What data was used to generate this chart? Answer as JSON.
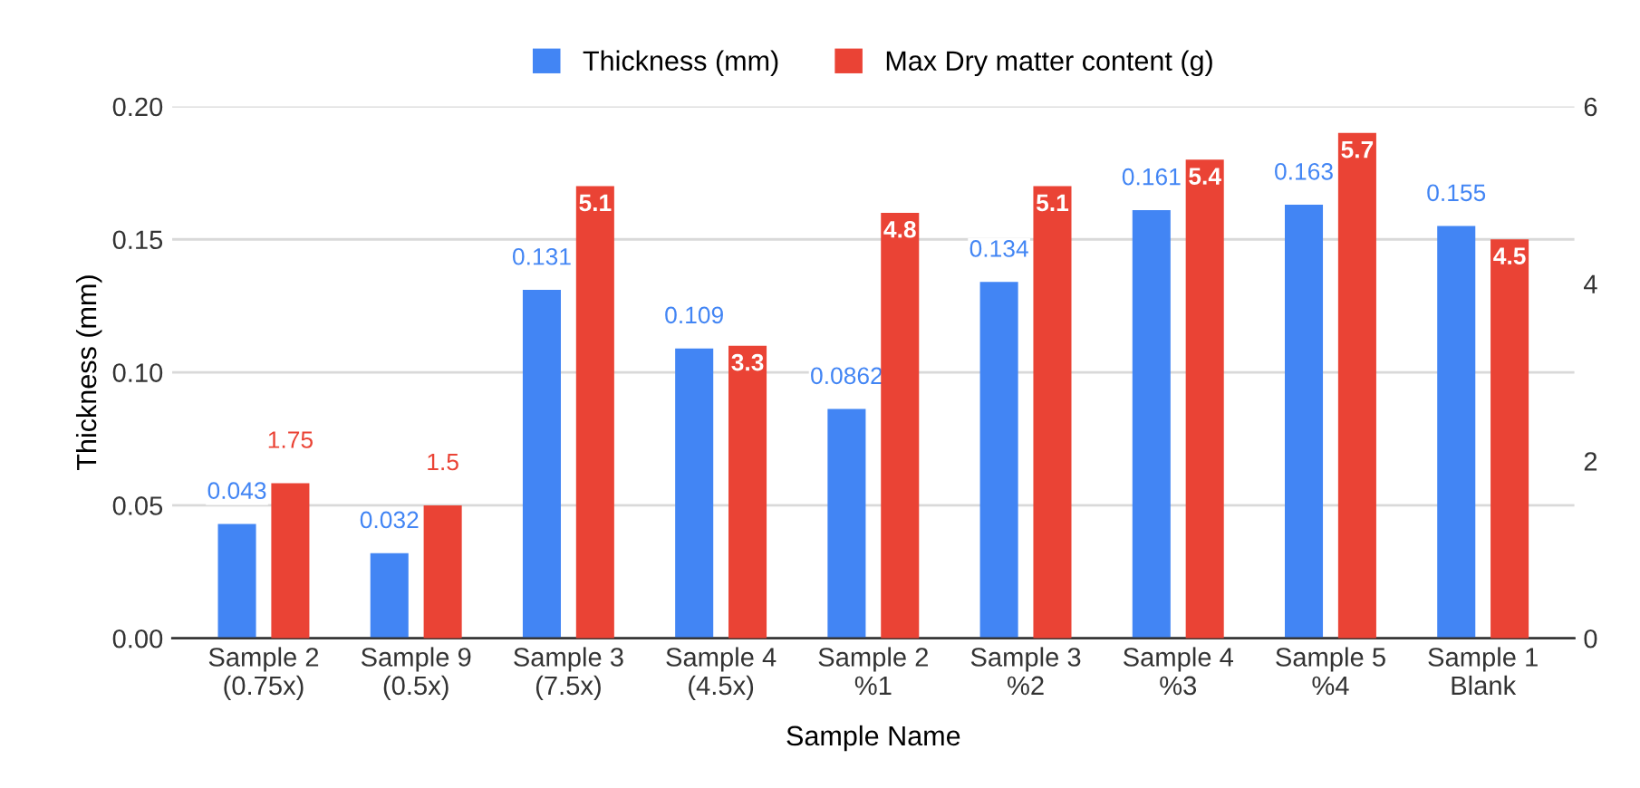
{
  "chart_data": {
    "type": "bar",
    "xlabel": "Sample Name",
    "ylabel": "Thickness (mm)",
    "categories": [
      "Sample 2\n(0.75x)",
      "Sample 9\n(0.5x)",
      "Sample 3\n(7.5x)",
      "Sample 4\n(4.5x)",
      "Sample 2\n%1",
      "Sample 3\n%2",
      "Sample 4\n%3",
      "Sample 5\n%4",
      "Sample 1\nBlank"
    ],
    "series": [
      {
        "name": "Thickness (mm)",
        "color": "#4285f4",
        "values": [
          0.043,
          0.032,
          0.131,
          0.109,
          0.0862,
          0.134,
          0.161,
          0.163,
          0.155
        ]
      },
      {
        "name": "Max Dry matter content (g)",
        "color": "#ea4335",
        "axis": "y2",
        "values": [
          1.75,
          1.5,
          5.1,
          3.3,
          4.8,
          5.1,
          5.4,
          5.7,
          4.5
        ]
      }
    ],
    "ylim": [
      0,
      0.2
    ],
    "yticks": [
      "0.00",
      "0.05",
      "0.10",
      "0.15",
      "0.20"
    ],
    "y2lim": [
      0,
      6
    ],
    "y2ticks": [
      0,
      2,
      4,
      6
    ],
    "grid": "y",
    "legend": "top",
    "data_labels": true
  }
}
